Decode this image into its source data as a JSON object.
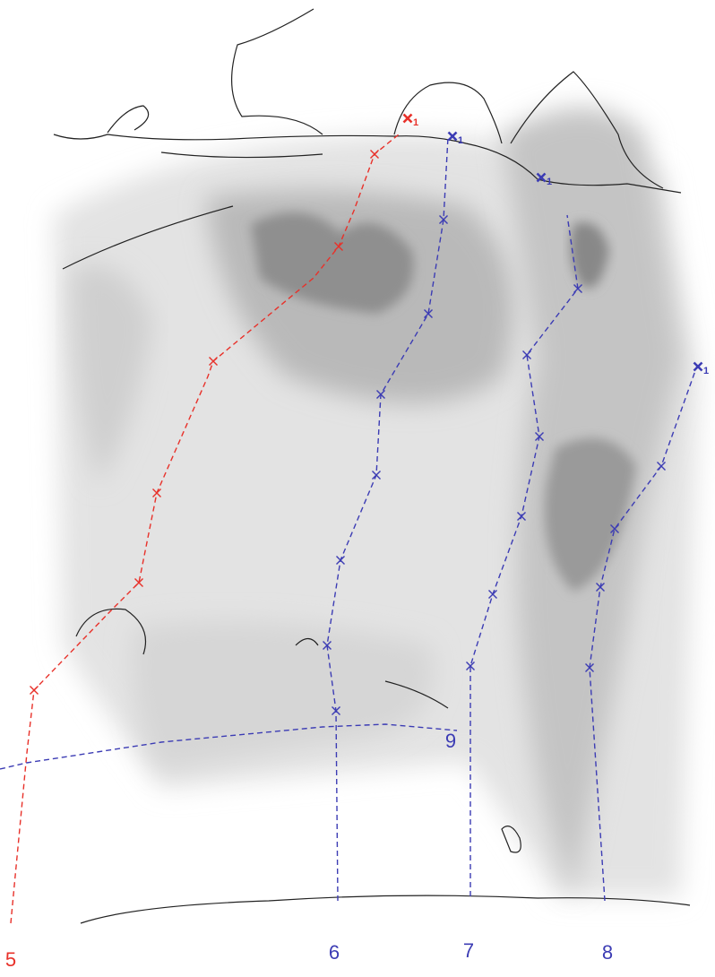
{
  "routes": [
    {
      "number": "5",
      "color": "#e8312a",
      "anchor": "1"
    },
    {
      "number": "6",
      "color": "#3c3cb4",
      "anchor": "1"
    },
    {
      "number": "7",
      "color": "#3c3cb4",
      "anchor": "1"
    },
    {
      "number": "8",
      "color": "#3c3cb4",
      "anchor": "1"
    },
    {
      "number": "9",
      "color": "#3c3cb4"
    }
  ]
}
